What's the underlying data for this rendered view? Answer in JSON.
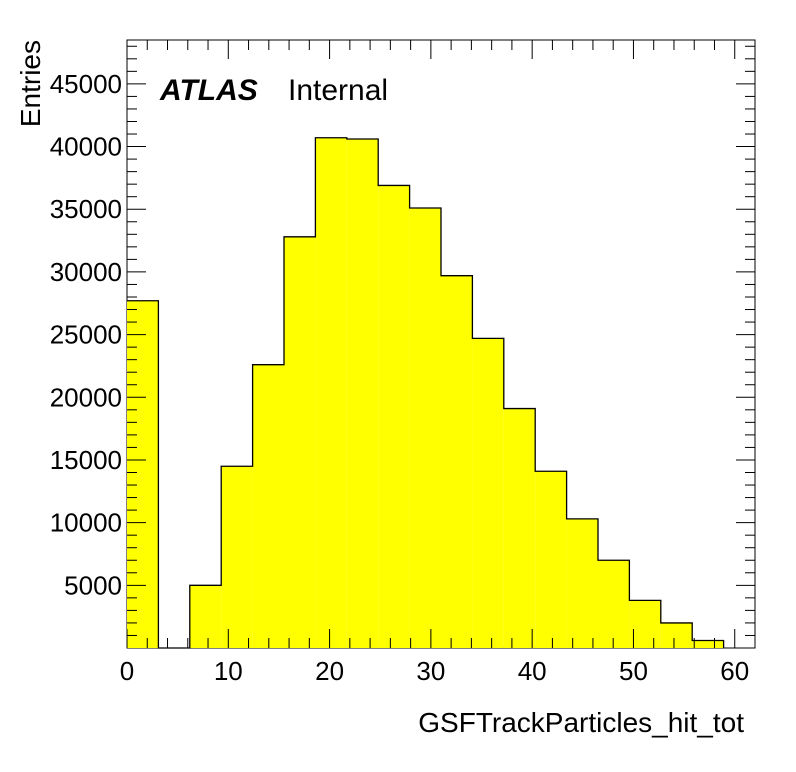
{
  "chart_data": {
    "type": "bar",
    "xlabel": "GSFTrackParticles_hit_tot",
    "ylabel": "Entries",
    "annotation": {
      "bold": "ATLAS",
      "normal": "Internal"
    },
    "xlim": [
      0,
      62
    ],
    "ylim": [
      0,
      48500
    ],
    "x_ticks": [
      0,
      10,
      20,
      30,
      40,
      50,
      60
    ],
    "y_ticks": [
      5000,
      10000,
      15000,
      20000,
      25000,
      30000,
      35000,
      40000,
      45000
    ],
    "bin_edges": [
      0,
      3.1,
      6.2,
      9.3,
      12.4,
      15.5,
      18.6,
      21.7,
      24.8,
      27.9,
      31.0,
      34.1,
      37.2,
      40.3,
      43.4,
      46.5,
      49.6,
      52.7,
      55.8,
      58.9
    ],
    "values": [
      27700,
      0,
      5000,
      14500,
      22600,
      32800,
      40700,
      40600,
      36900,
      35100,
      29700,
      24700,
      19100,
      14100,
      10300,
      7000,
      3800,
      2000,
      600
    ],
    "fill_color": "#ffff00",
    "line_color": "#000000",
    "grid": false
  }
}
